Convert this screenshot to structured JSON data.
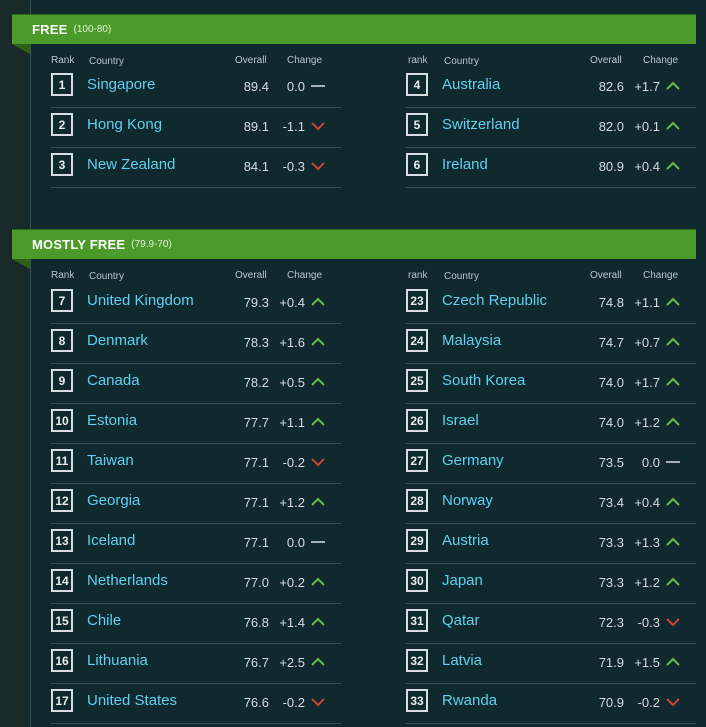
{
  "colors": {
    "banner": "#4b9a2a",
    "link": "#5fd0f1",
    "up": "#62bf45",
    "down": "#c6443a",
    "flat": "#a7b1b1"
  },
  "sections": [
    {
      "title": "FREE",
      "range": "(100-80)",
      "left_headers": {
        "rank": "Rank",
        "country": "Country",
        "overall": "Overall",
        "change": "Change"
      },
      "right_headers": {
        "rank": "rank",
        "country": "Country",
        "overall": "Overall",
        "change": "Change"
      },
      "left_rows": [
        {
          "rank": "1",
          "country": "Singapore",
          "overall": "89.4",
          "change": "0.0",
          "trend": "flat"
        },
        {
          "rank": "2",
          "country": "Hong Kong",
          "overall": "89.1",
          "change": "-1.1",
          "trend": "down"
        },
        {
          "rank": "3",
          "country": "New Zealand",
          "overall": "84.1",
          "change": "-0.3",
          "trend": "down"
        }
      ],
      "right_rows": [
        {
          "rank": "4",
          "country": "Australia",
          "overall": "82.6",
          "change": "+1.7",
          "trend": "up"
        },
        {
          "rank": "5",
          "country": "Switzerland",
          "overall": "82.0",
          "change": "+0.1",
          "trend": "up"
        },
        {
          "rank": "6",
          "country": "Ireland",
          "overall": "80.9",
          "change": "+0.4",
          "trend": "up"
        }
      ]
    },
    {
      "title": "MOSTLY FREE",
      "range": "(79.9-70)",
      "left_headers": {
        "rank": "Rank",
        "country": "Country",
        "overall": "Overall",
        "change": "Change"
      },
      "right_headers": {
        "rank": "rank",
        "country": "Country",
        "overall": "Overall",
        "change": "Change"
      },
      "left_rows": [
        {
          "rank": "7",
          "country": "United Kingdom",
          "overall": "79.3",
          "change": "+0.4",
          "trend": "up"
        },
        {
          "rank": "8",
          "country": "Denmark",
          "overall": "78.3",
          "change": "+1.6",
          "trend": "up"
        },
        {
          "rank": "9",
          "country": "Canada",
          "overall": "78.2",
          "change": "+0.5",
          "trend": "up"
        },
        {
          "rank": "10",
          "country": "Estonia",
          "overall": "77.7",
          "change": "+1.1",
          "trend": "up"
        },
        {
          "rank": "11",
          "country": "Taiwan",
          "overall": "77.1",
          "change": "-0.2",
          "trend": "down"
        },
        {
          "rank": "12",
          "country": "Georgia",
          "overall": "77.1",
          "change": "+1.2",
          "trend": "up"
        },
        {
          "rank": "13",
          "country": "Iceland",
          "overall": "77.1",
          "change": "0.0",
          "trend": "flat"
        },
        {
          "rank": "14",
          "country": "Netherlands",
          "overall": "77.0",
          "change": "+0.2",
          "trend": "up"
        },
        {
          "rank": "15",
          "country": "Chile",
          "overall": "76.8",
          "change": "+1.4",
          "trend": "up"
        },
        {
          "rank": "16",
          "country": "Lithuania",
          "overall": "76.7",
          "change": "+2.5",
          "trend": "up"
        },
        {
          "rank": "17",
          "country": "United States",
          "overall": "76.6",
          "change": "-0.2",
          "trend": "down"
        }
      ],
      "right_rows": [
        {
          "rank": "23",
          "country": "Czech Republic",
          "overall": "74.8",
          "change": "+1.1",
          "trend": "up"
        },
        {
          "rank": "24",
          "country": "Malaysia",
          "overall": "74.7",
          "change": "+0.7",
          "trend": "up"
        },
        {
          "rank": "25",
          "country": "South Korea",
          "overall": "74.0",
          "change": "+1.7",
          "trend": "up"
        },
        {
          "rank": "26",
          "country": "Israel",
          "overall": "74.0",
          "change": "+1.2",
          "trend": "up"
        },
        {
          "rank": "27",
          "country": "Germany",
          "overall": "73.5",
          "change": "0.0",
          "trend": "flat"
        },
        {
          "rank": "28",
          "country": "Norway",
          "overall": "73.4",
          "change": "+0.4",
          "trend": "up"
        },
        {
          "rank": "29",
          "country": "Austria",
          "overall": "73.3",
          "change": "+1.3",
          "trend": "up"
        },
        {
          "rank": "30",
          "country": "Japan",
          "overall": "73.3",
          "change": "+1.2",
          "trend": "up"
        },
        {
          "rank": "31",
          "country": "Qatar",
          "overall": "72.3",
          "change": "-0.3",
          "trend": "down"
        },
        {
          "rank": "32",
          "country": "Latvia",
          "overall": "71.9",
          "change": "+1.5",
          "trend": "up"
        },
        {
          "rank": "33",
          "country": "Rwanda",
          "overall": "70.9",
          "change": "-0.2",
          "trend": "down"
        }
      ]
    }
  ]
}
